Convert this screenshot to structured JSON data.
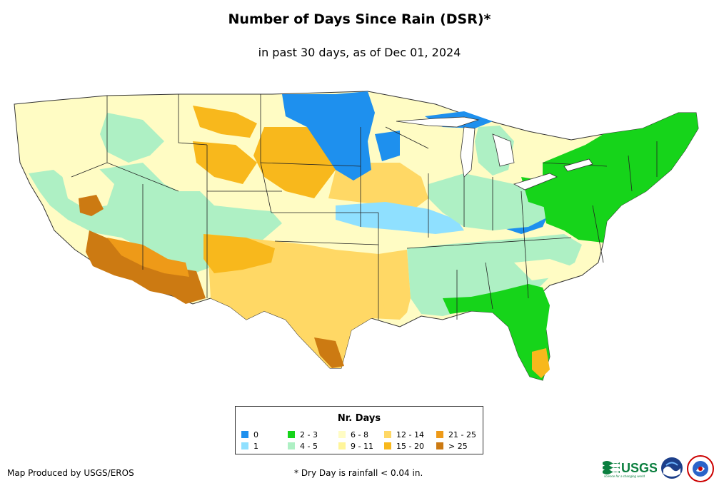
{
  "header": {
    "title": "Number of Days Since Rain (DSR)*",
    "subtitle": "in past 30 days, as of Dec 01, 2024"
  },
  "legend": {
    "title": "Nr. Days",
    "items": [
      {
        "label": "0",
        "color": "#1e90ee"
      },
      {
        "label": "1",
        "color": "#8fe0ff"
      },
      {
        "label": "2 - 3",
        "color": "#16d41a"
      },
      {
        "label": "4 - 5",
        "color": "#aef0c4"
      },
      {
        "label": "6 - 8",
        "color": "#fffcc4"
      },
      {
        "label": "9 - 11",
        "color": "#fff59a"
      },
      {
        "label": "12 - 14",
        "color": "#ffd865"
      },
      {
        "label": "15 - 20",
        "color": "#f8b81c"
      },
      {
        "label": "21 - 25",
        "color": "#ee9a18"
      },
      {
        "label": "> 25",
        "color": "#cc7a12"
      }
    ]
  },
  "footer": {
    "credit": "Map Produced by USGS/EROS",
    "footnote": "* Dry Day is rainfall < 0.04 in.",
    "usgs_logo_text": "USGS",
    "usgs_tagline": "science for a changing world"
  },
  "colors": {
    "water_outline": "#333333",
    "state_line": "#222222"
  }
}
